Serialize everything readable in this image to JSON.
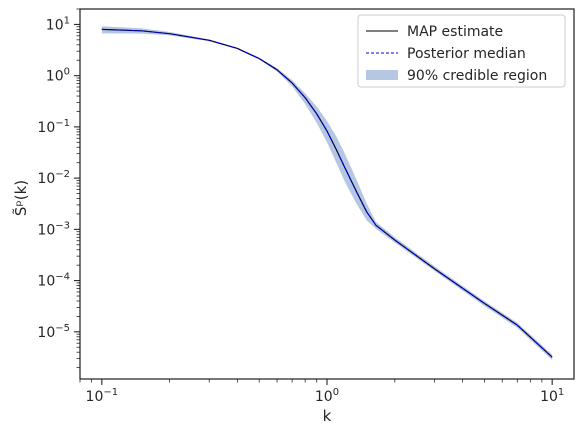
{
  "chart_data": {
    "type": "line",
    "xscale": "log",
    "yscale": "log",
    "xlim": [
      0.08,
      12.5
    ],
    "ylim": [
      1.2e-06,
      20
    ],
    "xlabel": "k",
    "ylabel": "S̃ᵖ(k)",
    "grid": false,
    "legend_position": "top-right",
    "x_ticks": [
      {
        "value": 0.1,
        "mant": "10",
        "exp": "−1"
      },
      {
        "value": 1,
        "mant": "10",
        "exp": "0"
      },
      {
        "value": 10,
        "mant": "10",
        "exp": "1"
      }
    ],
    "y_ticks": [
      {
        "value": 10,
        "mant": "10",
        "exp": "1"
      },
      {
        "value": 1,
        "mant": "10",
        "exp": "0"
      },
      {
        "value": 0.1,
        "mant": "10",
        "exp": "−1"
      },
      {
        "value": 0.01,
        "mant": "10",
        "exp": "−2"
      },
      {
        "value": 0.001,
        "mant": "10",
        "exp": "−3"
      },
      {
        "value": 0.0001,
        "mant": "10",
        "exp": "−4"
      },
      {
        "value": 1e-05,
        "mant": "10",
        "exp": "−5"
      }
    ],
    "x": [
      0.1,
      0.15,
      0.2,
      0.3,
      0.4,
      0.5,
      0.6,
      0.7,
      0.8,
      0.9,
      1.0,
      1.1,
      1.2,
      1.35,
      1.5,
      1.65,
      2.0,
      3.0,
      5.0,
      7.0,
      10.0
    ],
    "series": [
      {
        "name": "MAP estimate",
        "style": "solid",
        "color": "#000000",
        "values": [
          8.0,
          7.5,
          6.6,
          4.9,
          3.4,
          2.15,
          1.3,
          0.72,
          0.37,
          0.18,
          0.083,
          0.036,
          0.016,
          0.0055,
          0.0022,
          0.0012,
          0.00062,
          0.00017,
          3.6e-05,
          1.35e-05,
          3.2e-06
        ]
      },
      {
        "name": "Posterior median",
        "style": "dashed",
        "color": "#0000ff",
        "values": [
          8.0,
          7.5,
          6.6,
          4.9,
          3.4,
          2.15,
          1.3,
          0.72,
          0.37,
          0.18,
          0.083,
          0.036,
          0.016,
          0.0055,
          0.0022,
          0.0012,
          0.00062,
          0.00017,
          3.6e-05,
          1.35e-05,
          3.2e-06
        ]
      }
    ],
    "band": {
      "name": "90% credible region",
      "color": "#b6c7e3",
      "lower": [
        6.7,
        6.6,
        6.1,
        4.7,
        3.3,
        2.1,
        1.2,
        0.62,
        0.28,
        0.12,
        0.05,
        0.02,
        0.0085,
        0.0032,
        0.0015,
        0.00102,
        0.00055,
        0.000155,
        3.2e-05,
        1.2e-05,
        2.8e-06
      ],
      "upper": [
        9.2,
        8.4,
        7.1,
        5.1,
        3.5,
        2.25,
        1.4,
        0.82,
        0.45,
        0.25,
        0.13,
        0.065,
        0.03,
        0.0095,
        0.0032,
        0.0014,
        0.0007,
        0.00019,
        4e-05,
        1.5e-05,
        3.6e-06
      ]
    },
    "colors": {
      "axes": "#262626",
      "map_line": "#000000",
      "median_line": "#0000ff",
      "band_fill": "#b6c7e3",
      "legend_border": "#cccccc"
    }
  }
}
